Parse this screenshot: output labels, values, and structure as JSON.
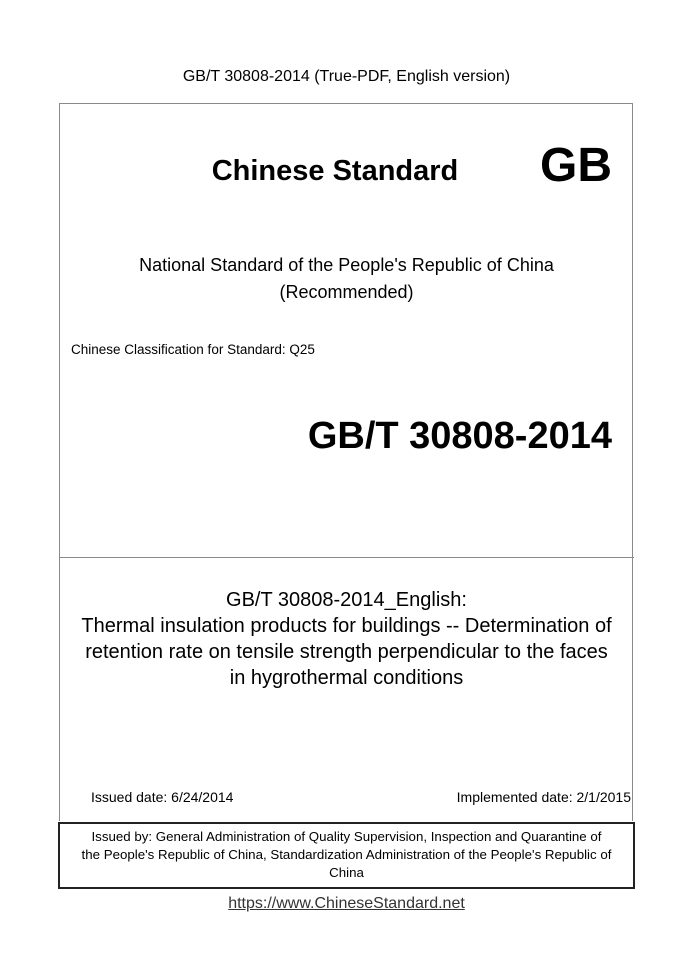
{
  "header": {
    "title": "GB/T 30808-2014 (True-PDF, English version)"
  },
  "cover": {
    "standard_label": "Chinese Standard",
    "gb_mark": "GB",
    "national_line1": "National Standard of the People's Republic of China",
    "national_line2": "(Recommended)",
    "classification": "Chinese Classification for Standard: Q25",
    "standard_number": "GB/T 30808-2014",
    "title_lines": [
      "GB/T 30808-2014_English:",
      "Thermal insulation products for buildings -- Determination of",
      "retention rate on tensile strength perpendicular to the faces",
      "in hygrothermal conditions"
    ],
    "issued_date": "Issued date: 6/24/2014",
    "implemented_date": "Implemented date: 2/1/2015",
    "issuer_lines": [
      "Issued by: General Administration of Quality Supervision, Inspection and Quarantine of",
      "the People's Republic of China, Standardization Administration of the People's Republic of",
      "China"
    ]
  },
  "footer": {
    "link": "https://www.ChineseStandard.net"
  }
}
